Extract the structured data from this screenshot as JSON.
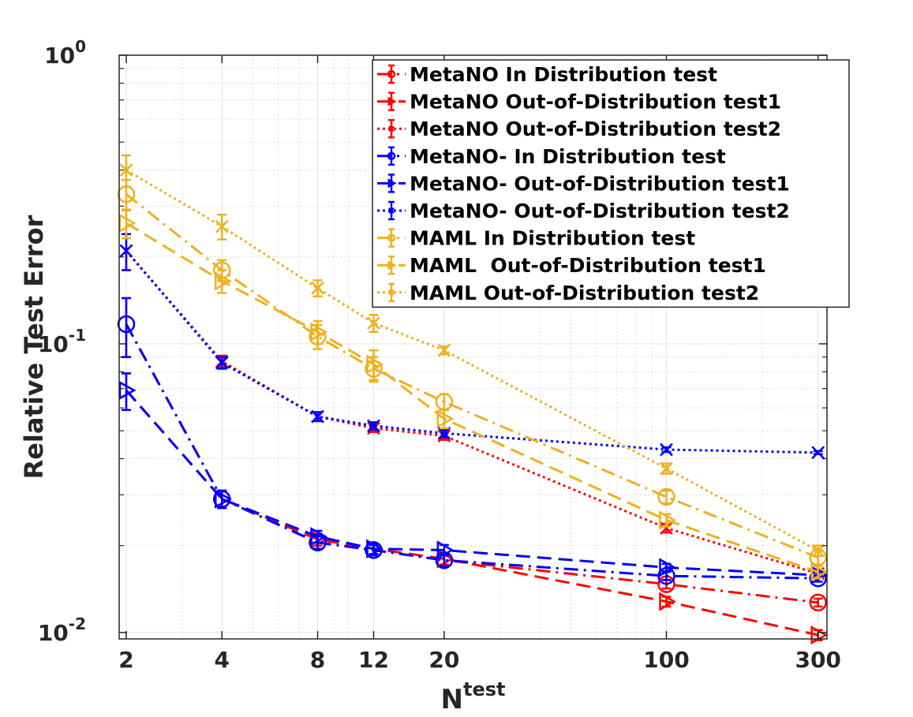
{
  "chart_data": {
    "type": "line",
    "xscale": "log",
    "yscale": "log",
    "xlabel": "N",
    "xlabel_superscript": "test",
    "ylabel": "Relative Test Error",
    "xlim": [
      1.9,
      320
    ],
    "ylim": [
      0.0095,
      1
    ],
    "grid": true,
    "legend_position": "top-right",
    "x_ticks": [
      2,
      4,
      8,
      12,
      20,
      100,
      300
    ],
    "x_tick_labels": [
      "2",
      "4",
      "8",
      "12",
      "20",
      "100",
      "300"
    ],
    "y_ticks": [
      {
        "value": 0.01,
        "base": "10",
        "exp": "-2"
      },
      {
        "value": 0.1,
        "base": "10",
        "exp": "-1"
      },
      {
        "value": 1,
        "base": "10",
        "exp": "0"
      }
    ],
    "x": [
      2,
      4,
      8,
      12,
      20,
      100,
      300
    ],
    "series": [
      {
        "name": "MetaNO In Distribution test",
        "color": "#ff0000",
        "dash": "dashdot",
        "marker": "circle",
        "values": [
          0.117,
          0.029,
          0.0205,
          0.0193,
          0.0178,
          0.0147,
          0.0127
        ],
        "errors": [
          0.027,
          0.002,
          0.001,
          0.0008,
          0.0008,
          0.0005,
          0.0004
        ]
      },
      {
        "name": "MetaNO Out-of-Distribution test1",
        "color": "#ff0000",
        "dash": "dashed",
        "marker": "triangle",
        "values": [
          0.069,
          0.029,
          0.021,
          0.0195,
          0.018,
          0.0128,
          0.0098
        ],
        "errors": [
          0.01,
          0.002,
          0.001,
          0.0008,
          0.0008,
          0.0005,
          0.0004
        ]
      },
      {
        "name": "MetaNO Out-of-Distribution test2",
        "color": "#ff0000",
        "dash": "dotted",
        "marker": "x",
        "values": [
          0.21,
          0.087,
          0.056,
          0.051,
          0.048,
          0.023,
          0.016
        ],
        "errors": [
          0.03,
          0.004,
          0.002,
          0.0015,
          0.0015,
          0.0008,
          0.0005
        ]
      },
      {
        "name": "MetaNO- In Distribution test",
        "color": "#0000ff",
        "dash": "dashdot",
        "marker": "circle",
        "values": [
          0.117,
          0.029,
          0.0205,
          0.0193,
          0.0178,
          0.0157,
          0.0154
        ],
        "errors": [
          0.027,
          0.002,
          0.001,
          0.0008,
          0.0008,
          0.0005,
          0.0004
        ]
      },
      {
        "name": "MetaNO- Out-of-Distribution test1",
        "color": "#0000ff",
        "dash": "dashed",
        "marker": "triangle",
        "values": [
          0.069,
          0.029,
          0.0215,
          0.0195,
          0.0193,
          0.0168,
          0.0158
        ],
        "errors": [
          0.01,
          0.002,
          0.001,
          0.0008,
          0.0008,
          0.0005,
          0.0004
        ]
      },
      {
        "name": "MetaNO- Out-of-Distribution test2",
        "color": "#0000ff",
        "dash": "dotted",
        "marker": "x",
        "values": [
          0.21,
          0.086,
          0.056,
          0.052,
          0.049,
          0.043,
          0.042
        ],
        "errors": [
          0.03,
          0.004,
          0.002,
          0.0015,
          0.0015,
          0.0008,
          0.0005
        ]
      },
      {
        "name": "MAML In Distribution test",
        "color": "#edb120",
        "dash": "dashdot",
        "marker": "circle",
        "values": [
          0.33,
          0.18,
          0.106,
          0.082,
          0.063,
          0.0295,
          0.0182
        ],
        "errors": [
          0.04,
          0.015,
          0.01,
          0.008,
          0.004,
          0.0015,
          0.001
        ]
      },
      {
        "name": "MAML  Out-of-Distribution test1",
        "color": "#edb120",
        "dash": "dashed",
        "marker": "triangle",
        "values": [
          0.262,
          0.165,
          0.11,
          0.085,
          0.055,
          0.0245,
          0.0162
        ],
        "errors": [
          0.03,
          0.015,
          0.01,
          0.01,
          0.004,
          0.0012,
          0.0008
        ]
      },
      {
        "name": "MAML Out-of-Distribution test2",
        "color": "#edb120",
        "dash": "dotted",
        "marker": "x",
        "values": [
          0.4,
          0.255,
          0.156,
          0.118,
          0.095,
          0.037,
          0.0192
        ],
        "errors": [
          0.05,
          0.025,
          0.01,
          0.008,
          0.003,
          0.0015,
          0.0008
        ]
      }
    ]
  }
}
